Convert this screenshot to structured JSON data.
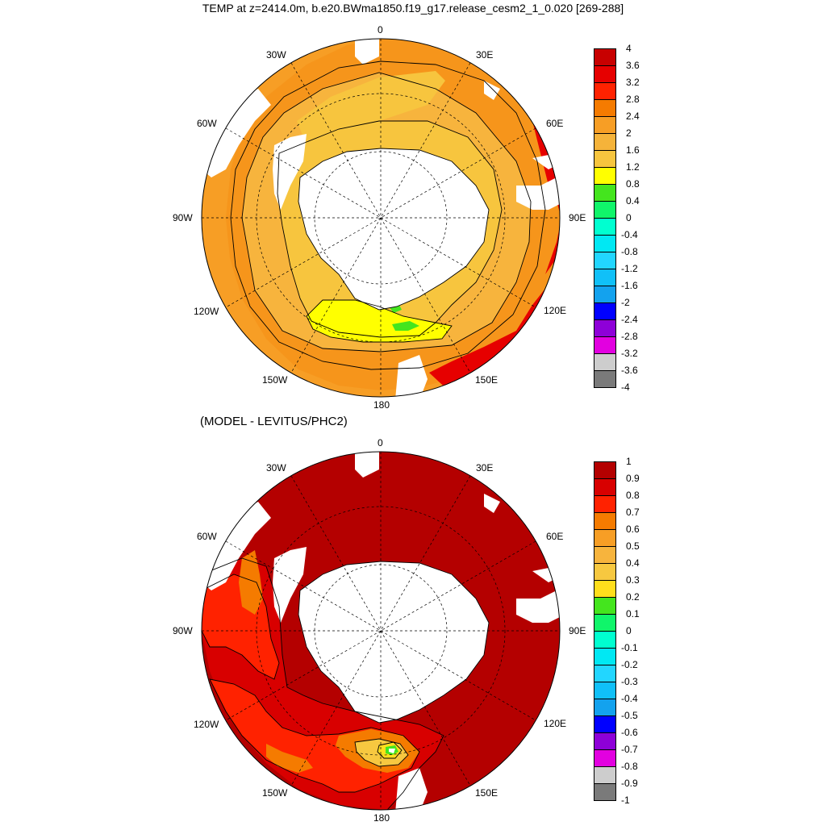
{
  "figure": {
    "title": "TEMP at z=2414.0m, b.e20.BWma1850.f19_g17.release_cesm2_1_0.020 [269-288]",
    "subtitle": "(MODEL - LEVITUS/PHC2)"
  },
  "longitude_labels": [
    "0",
    "30E",
    "60E",
    "90E",
    "120E",
    "150E",
    "180",
    "150W",
    "120W",
    "90W",
    "60W",
    "30W"
  ],
  "panels": [
    {
      "name": "model-temp",
      "field": "TEMP",
      "colorbar": {
        "levels": [
          "4",
          "3.6",
          "3.2",
          "2.8",
          "2.4",
          "2",
          "1.6",
          "1.2",
          "0.8",
          "0.4",
          "0",
          "-0.4",
          "-0.8",
          "-1.2",
          "-1.6",
          "-2",
          "-2.4",
          "-2.8",
          "-3.2",
          "-3.6",
          "-4"
        ],
        "colors": [
          "#c80000",
          "#e60000",
          "#ff2200",
          "#f57b00",
          "#f79e25",
          "#f5b33a",
          "#f7c53e",
          "#ffff00",
          "#44e51e",
          "#10f56a",
          "#00ffd0",
          "#00e8f3",
          "#22d6ff",
          "#10c0f8",
          "#13a2ee",
          "#0000ff",
          "#8e00d8",
          "#e200e0",
          "#cdcdcd",
          "#7a7a7a"
        ]
      }
    },
    {
      "name": "model-minus-obs",
      "field": "MODEL - LEVITUS/PHC2",
      "colorbar": {
        "levels": [
          "1",
          "0.9",
          "0.8",
          "0.7",
          "0.6",
          "0.5",
          "0.4",
          "0.3",
          "0.2",
          "0.1",
          "0",
          "-0.1",
          "-0.2",
          "-0.3",
          "-0.4",
          "-0.5",
          "-0.6",
          "-0.7",
          "-0.8",
          "-0.9",
          "-1"
        ],
        "colors": [
          "#b40000",
          "#d80000",
          "#ff2200",
          "#f57b00",
          "#f79e25",
          "#f7b43d",
          "#f7c840",
          "#ffde1c",
          "#44e51e",
          "#10f56a",
          "#00ffd0",
          "#00e8f3",
          "#22d6ff",
          "#10c0f8",
          "#13a2ee",
          "#0000ff",
          "#8e00d8",
          "#e200e0",
          "#cdcdcd",
          "#7a7a7a"
        ]
      }
    }
  ]
}
